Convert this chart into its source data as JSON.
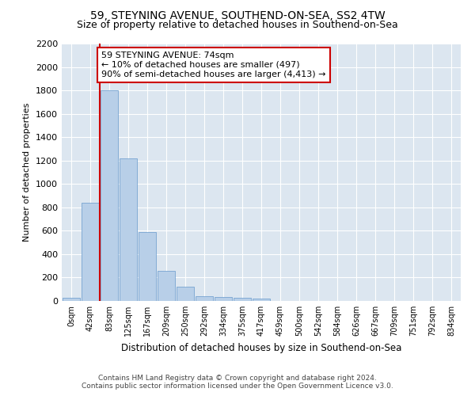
{
  "title": "59, STEYNING AVENUE, SOUTHEND-ON-SEA, SS2 4TW",
  "subtitle": "Size of property relative to detached houses in Southend-on-Sea",
  "xlabel": "Distribution of detached houses by size in Southend-on-Sea",
  "ylabel": "Number of detached properties",
  "footer_line1": "Contains HM Land Registry data © Crown copyright and database right 2024.",
  "footer_line2": "Contains public sector information licensed under the Open Government Licence v3.0.",
  "bar_labels": [
    "0sqm",
    "42sqm",
    "83sqm",
    "125sqm",
    "167sqm",
    "209sqm",
    "250sqm",
    "292sqm",
    "334sqm",
    "375sqm",
    "417sqm",
    "459sqm",
    "500sqm",
    "542sqm",
    "584sqm",
    "626sqm",
    "667sqm",
    "709sqm",
    "751sqm",
    "792sqm",
    "834sqm"
  ],
  "bar_values": [
    25,
    840,
    1800,
    1220,
    590,
    255,
    120,
    40,
    35,
    25,
    20,
    0,
    0,
    0,
    0,
    0,
    0,
    0,
    0,
    0,
    0
  ],
  "bar_color": "#b8cfe8",
  "bar_edge_color": "#6699cc",
  "vline_x": 1.5,
  "vline_color": "#cc0000",
  "annotation_text": "59 STEYNING AVENUE: 74sqm\n← 10% of detached houses are smaller (497)\n90% of semi-detached houses are larger (4,413) →",
  "annotation_box_facecolor": "#ffffff",
  "annotation_border_color": "#cc0000",
  "ylim": [
    0,
    2200
  ],
  "yticks": [
    0,
    200,
    400,
    600,
    800,
    1000,
    1200,
    1400,
    1600,
    1800,
    2000,
    2200
  ],
  "plot_bg_color": "#dce6f0",
  "title_fontsize": 10,
  "subtitle_fontsize": 9,
  "annotation_fontsize": 8
}
